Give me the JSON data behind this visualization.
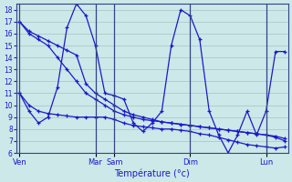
{
  "xlabel": "Température (°c)",
  "bg_color": "#cce8e8",
  "line_color": "#1a1acc",
  "grid_color": "#99bbbb",
  "ylim": [
    6,
    18.5
  ],
  "yticks": [
    6,
    7,
    8,
    9,
    10,
    11,
    12,
    13,
    14,
    15,
    16,
    17,
    18
  ],
  "day_labels": [
    "Ven",
    "Mar",
    "Sam",
    "Dim",
    "Lun"
  ],
  "day_positions": [
    0,
    48,
    60,
    108,
    156
  ],
  "total_points": 168,
  "vline_positions": [
    0,
    48,
    60,
    108,
    156
  ],
  "lines": [
    {
      "x": [
        0,
        6,
        12,
        18,
        24,
        30,
        36,
        42,
        48,
        54,
        60,
        66,
        72,
        78,
        84,
        90,
        96,
        102,
        108,
        114,
        120,
        126,
        132,
        138,
        144,
        150,
        156,
        162,
        168
      ],
      "y": [
        17,
        16.2,
        15.8,
        15.4,
        15.0,
        14.6,
        14.2,
        11.8,
        11.0,
        10.5,
        10.0,
        9.5,
        9.2,
        9.0,
        8.8,
        8.6,
        8.5,
        8.4,
        8.3,
        8.2,
        8.1,
        8.0,
        7.9,
        7.8,
        7.7,
        7.6,
        7.5,
        7.3,
        7.0
      ]
    },
    {
      "x": [
        0,
        6,
        12,
        18,
        24,
        30,
        36,
        42,
        48,
        54,
        60,
        66,
        72,
        78,
        84,
        90,
        96,
        102,
        108,
        114,
        120,
        126,
        132,
        138,
        144,
        150,
        156,
        162,
        168
      ],
      "y": [
        11,
        9.5,
        8.5,
        9.0,
        11.5,
        16.5,
        18.5,
        17.5,
        15.0,
        11.0,
        10.8,
        10.5,
        8.5,
        7.8,
        8.5,
        9.5,
        15.0,
        18.0,
        17.5,
        15.5,
        9.5,
        7.5,
        6.0,
        7.5,
        9.5,
        7.5,
        9.5,
        14.5,
        14.5
      ]
    },
    {
      "x": [
        0,
        6,
        12,
        18,
        24,
        30,
        36,
        42,
        48,
        54,
        60,
        66,
        72,
        78,
        84,
        90,
        96,
        102,
        108,
        114,
        120,
        126,
        132,
        138,
        144,
        150,
        156,
        162,
        168
      ],
      "y": [
        17,
        16.0,
        15.5,
        15.0,
        14.0,
        13.0,
        12.0,
        11.0,
        10.5,
        10.0,
        9.5,
        9.2,
        9.0,
        8.8,
        8.7,
        8.6,
        8.5,
        8.4,
        8.3,
        8.2,
        8.1,
        8.0,
        7.9,
        7.8,
        7.7,
        7.6,
        7.5,
        7.4,
        7.2
      ]
    },
    {
      "x": [
        0,
        6,
        12,
        18,
        24,
        30,
        36,
        42,
        48,
        54,
        60,
        66,
        72,
        78,
        84,
        90,
        96,
        102,
        108,
        114,
        120,
        126,
        132,
        138,
        144,
        150,
        156,
        162,
        168
      ],
      "y": [
        11,
        10.0,
        9.5,
        9.3,
        9.2,
        9.1,
        9.0,
        9.0,
        9.0,
        9.0,
        8.8,
        8.5,
        8.3,
        8.2,
        8.1,
        8.0,
        8.0,
        7.9,
        7.8,
        7.6,
        7.5,
        7.3,
        7.1,
        6.9,
        6.7,
        6.6,
        6.5,
        6.4,
        6.5
      ]
    }
  ]
}
